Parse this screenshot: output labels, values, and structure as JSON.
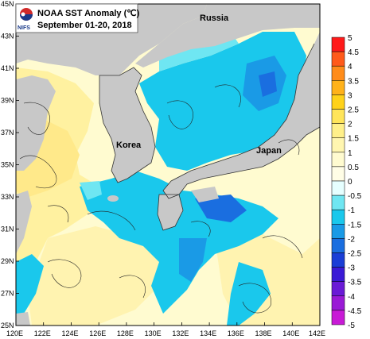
{
  "title": "NOAA SST Anomaly (℃)",
  "subtitle": "September 01-20, 2018",
  "org": "NIFS",
  "labels": {
    "russia": "Russia",
    "korea": "Korea",
    "japan": "Japan"
  },
  "lat_ticks": [
    "45N",
    "43N",
    "41N",
    "39N",
    "37N",
    "35N",
    "33N",
    "31N",
    "29N",
    "27N",
    "25N"
  ],
  "lon_ticks": [
    "120E",
    "122E",
    "124E",
    "126E",
    "128E",
    "130E",
    "132E",
    "134E",
    "136E",
    "138E",
    "140E",
    "142E"
  ],
  "colorbar": {
    "labels": [
      "5",
      "4.5",
      "4",
      "3.5",
      "3",
      "2.5",
      "2",
      "1.5",
      "1",
      "0.5",
      "0",
      "-0.5",
      "-1",
      "-1.5",
      "-2",
      "-2.5",
      "-3",
      "-3.5",
      "-4",
      "-4.5",
      "-5"
    ],
    "colors": [
      "#ff1a1a",
      "#ff5a1a",
      "#ff8c1a",
      "#ffb21a",
      "#ffd21a",
      "#ffe55a",
      "#fff08a",
      "#fff6b0",
      "#fffbd0",
      "#fffde6",
      "#e6ffff",
      "#6fe6f2",
      "#1ac8ec",
      "#1a9ae6",
      "#1a6ee0",
      "#1a3ed6",
      "#3a1ad6",
      "#6a1ad6",
      "#9a1ad6",
      "#c81ad6"
    ]
  },
  "regions": {
    "land": "#c8c8c8",
    "warm_sea": "#fff6b0",
    "hot_sea": "#ffe680",
    "cold_sea": "#1ac8ec",
    "cool_sea": "#6fe6f2",
    "deep_cold": "#1a6ee0"
  }
}
